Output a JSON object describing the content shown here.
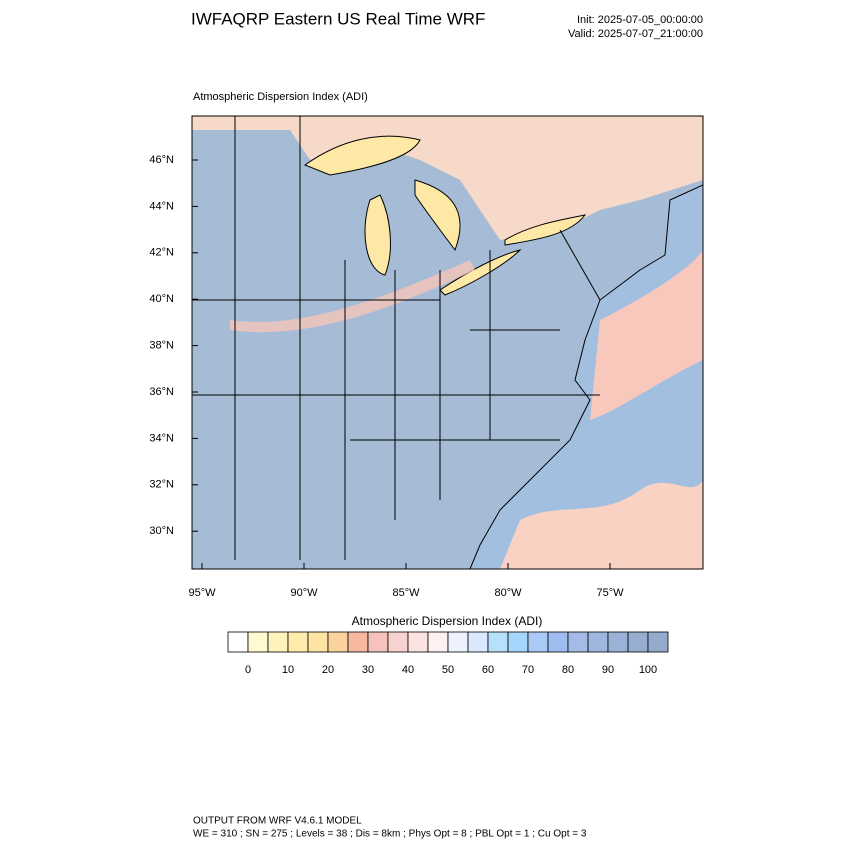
{
  "header": {
    "title": "IWFAQRP Eastern US Real Time WRF",
    "init": "Init: 2025-07-05_00:00:00",
    "valid": "Valid: 2025-07-07_21:00:00"
  },
  "map": {
    "subtitle": "Atmospheric Dispersion Index   (ADI)",
    "lat_labels": [
      "46°N",
      "44°N",
      "42°N",
      "40°N",
      "38°N",
      "36°N",
      "34°N",
      "32°N",
      "30°N"
    ],
    "lon_labels": [
      "95°W",
      "90°W",
      "85°W",
      "80°W",
      "75°W"
    ]
  },
  "colorbar": {
    "title": "Atmospheric Dispersion Index  (ADI)",
    "colors": [
      "#ffffff",
      "#fffad2",
      "#fff3bd",
      "#ffecac",
      "#fde3a4",
      "#fad39c",
      "#f7b8a0",
      "#f5c2bc",
      "#f8d2d0",
      "#fbe3e1",
      "#fdf1f1",
      "#eef2ff",
      "#d9e8ff",
      "#b7e0fb",
      "#a6d6fb",
      "#a9caf6",
      "#9dbdf0",
      "#a4bbe6",
      "#9fb6de",
      "#9ab2d8",
      "#97aed3",
      "#95abce"
    ],
    "ticks": [
      0,
      10,
      20,
      30,
      40,
      50,
      60,
      70,
      80,
      90,
      100
    ]
  },
  "footer": {
    "line1": "OUTPUT FROM WRF V4.6.1 MODEL",
    "line2": "WE = 310 ; SN = 275 ; Levels = 38 ; Dis = 8km ; Phys Opt = 8 ; PBL Opt = 1 ; Cu Opt = 3"
  }
}
